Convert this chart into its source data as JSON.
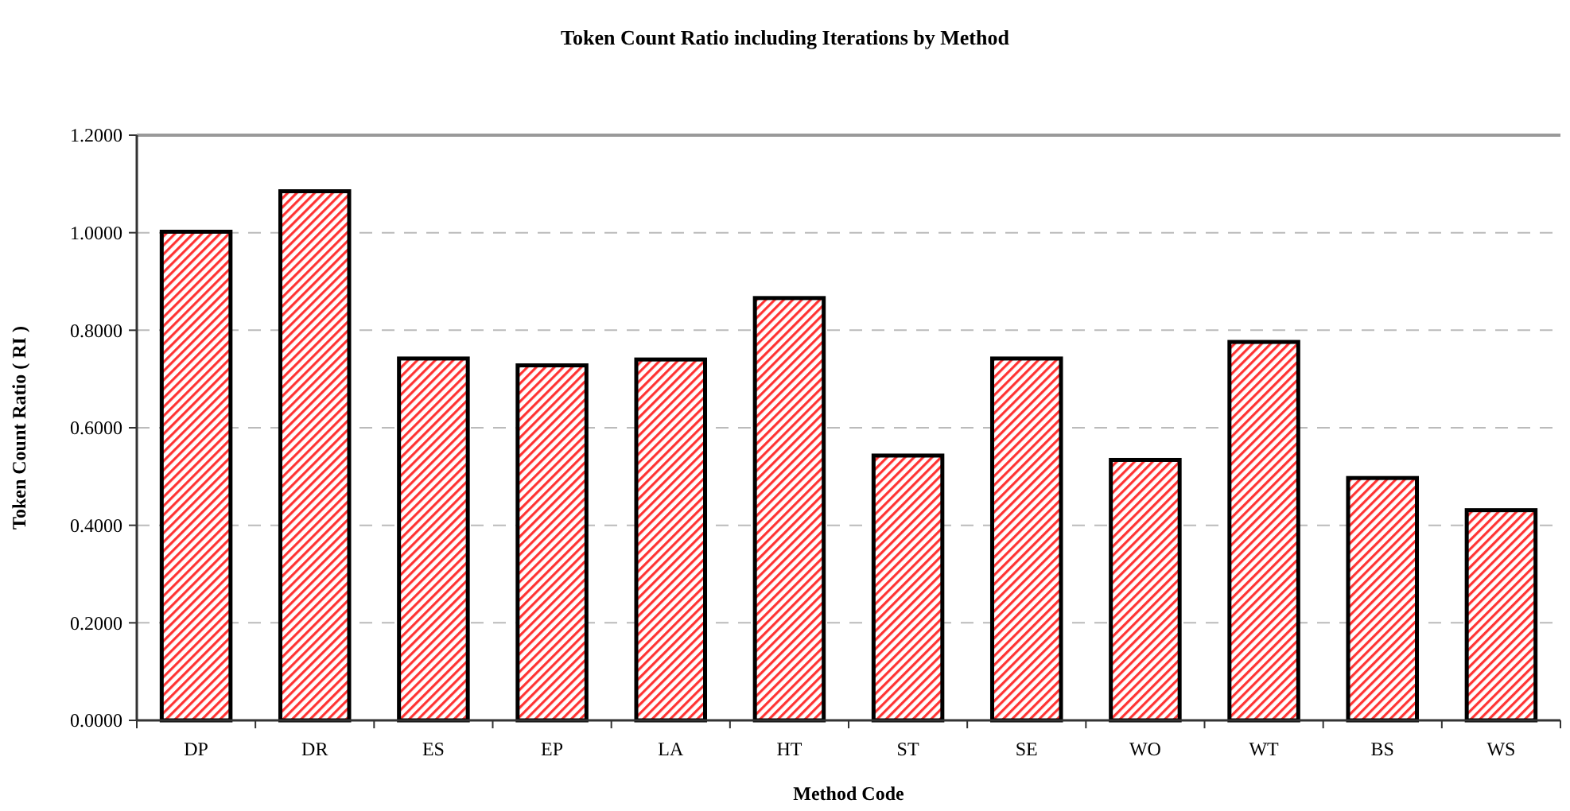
{
  "chart_data": {
    "type": "bar",
    "title": "Token Count Ratio including Iterations by Method",
    "xlabel": "Method Code",
    "ylabel": "Token Count Ratio ( RI )",
    "categories": [
      "DP",
      "DR",
      "ES",
      "EP",
      "LA",
      "HT",
      "ST",
      "SE",
      "WO",
      "WT",
      "BS",
      "WS"
    ],
    "values": [
      1.002,
      1.085,
      0.742,
      0.728,
      0.74,
      0.866,
      0.543,
      0.742,
      0.534,
      0.776,
      0.497,
      0.431
    ],
    "color": "#ff3333",
    "ylim": [
      0,
      1.2
    ],
    "yticks": [
      {
        "value": 0,
        "label": "0.0000"
      },
      {
        "value": 0.2,
        "label": "0.2000"
      },
      {
        "value": 0.4,
        "label": "0.4000"
      },
      {
        "value": 0.6,
        "label": "0.6000"
      },
      {
        "value": 0.8,
        "label": "0.8000"
      },
      {
        "value": 1,
        "label": "1.0000"
      },
      {
        "value": 1.2,
        "label": "1.2000"
      }
    ],
    "grid": "y"
  }
}
